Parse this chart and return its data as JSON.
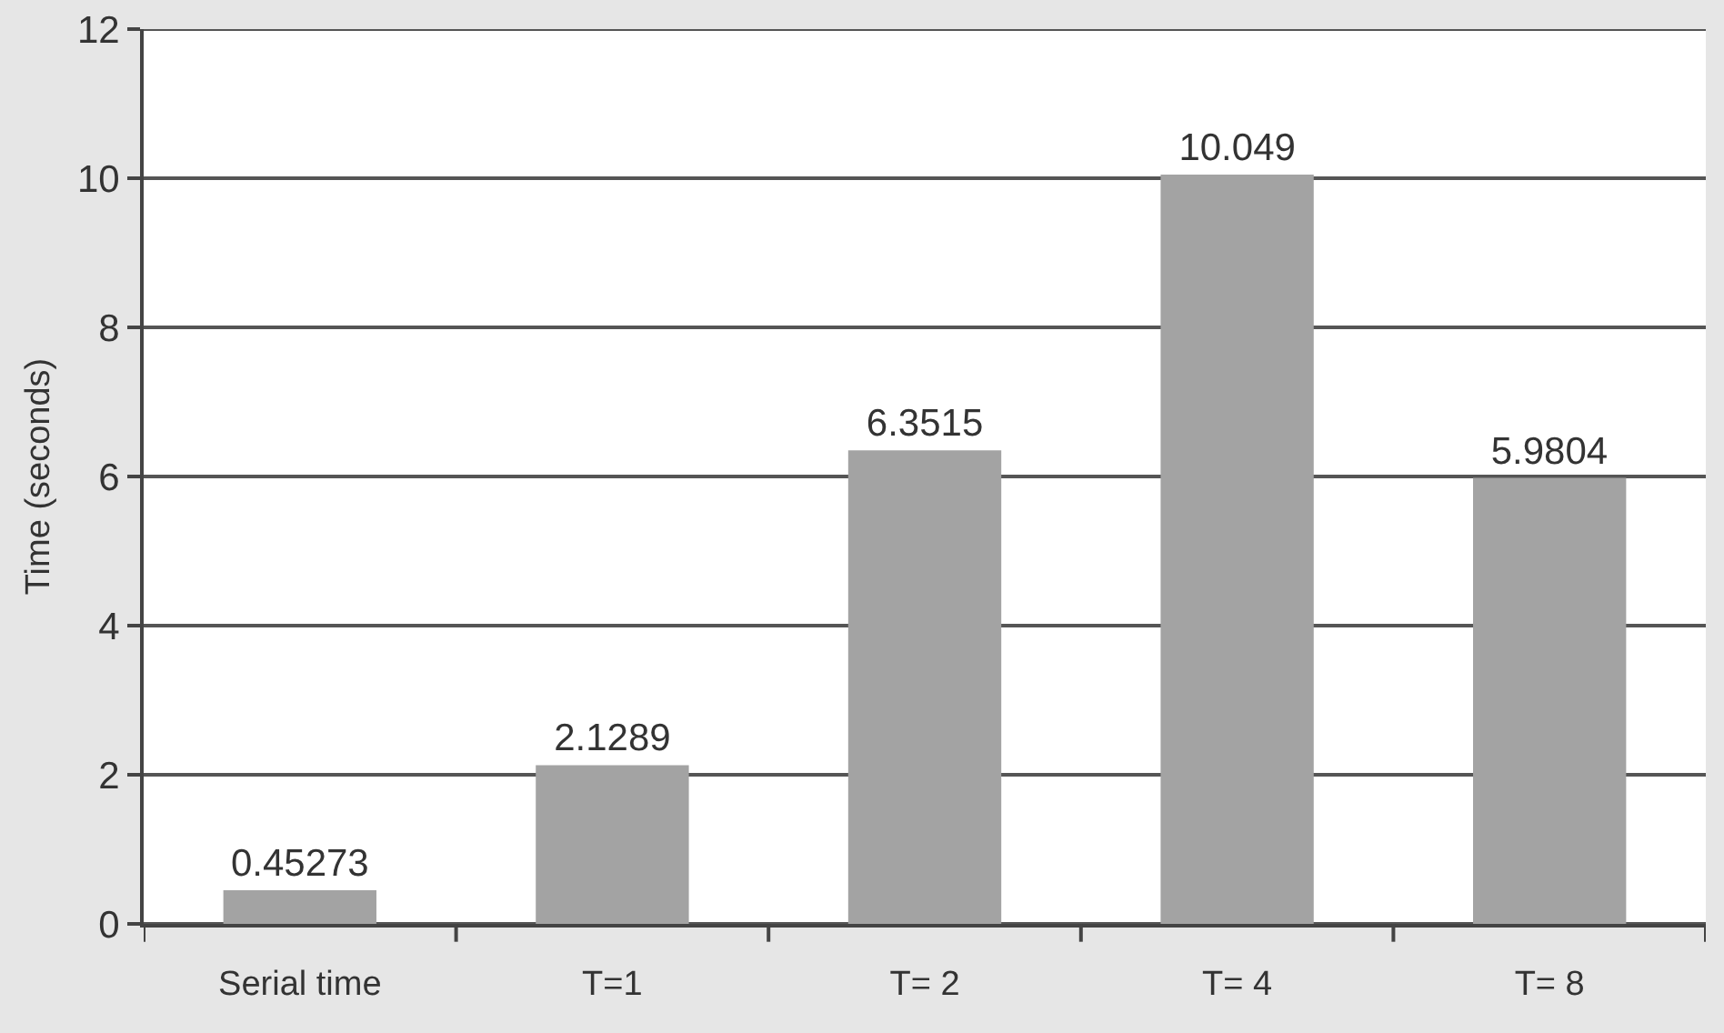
{
  "chart_data": {
    "type": "bar",
    "ylabel": "Time (seconds)",
    "categories": [
      "Serial time",
      "T=1",
      "T= 2",
      "T= 4",
      "T= 8"
    ],
    "values": [
      0.45273,
      2.1289,
      6.3515,
      10.049,
      5.9804
    ],
    "color": "#a3a3a3",
    "ylim": [
      0,
      12
    ],
    "yticks": [
      0,
      2,
      4,
      6,
      8,
      10,
      12
    ],
    "grid": "y",
    "data_labels": true
  }
}
